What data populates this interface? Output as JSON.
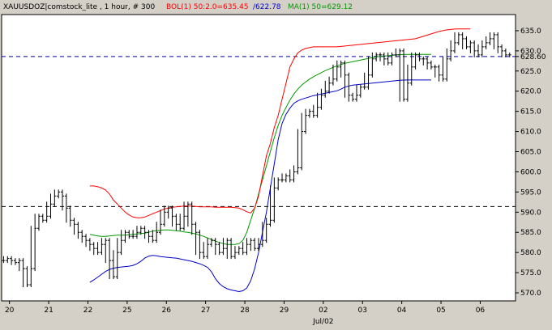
{
  "chart_data": {
    "type": "line",
    "header": {
      "symbol_text": "XAUUSDOZ|comstock_lite , 1 hour, # 300",
      "bol_text": "BOL(1) 50:2.0=635.45",
      "bol_lower_text": "/622.78",
      "ma_text": "MA(1) 50=629.12"
    },
    "colors": {
      "background": "#d4d0c8",
      "plot": "#ffffff",
      "price": "#000000",
      "upper_band": "#ff0000",
      "lower_band": "#0000cc",
      "moving_average": "#009900",
      "ref_line_top": "#0000aa",
      "ref_line_bottom": "#000000"
    },
    "ylim": [
      568,
      639
    ],
    "y_ticks": [
      {
        "value": 635,
        "label": "635.0"
      },
      {
        "value": 630,
        "label": "630.0"
      },
      {
        "value": 628.6,
        "label": "628.60"
      },
      {
        "value": 625,
        "label": "625.0"
      },
      {
        "value": 620,
        "label": "620.0"
      },
      {
        "value": 615,
        "label": "615.0"
      },
      {
        "value": 610,
        "label": "610.0"
      },
      {
        "value": 605,
        "label": "605.0"
      },
      {
        "value": 600,
        "label": "600.0"
      },
      {
        "value": 595,
        "label": "595.0"
      },
      {
        "value": 590,
        "label": "590.0"
      },
      {
        "value": 585,
        "label": "585.0"
      },
      {
        "value": 580,
        "label": "580.0"
      },
      {
        "value": 575,
        "label": "575.0"
      },
      {
        "value": 570,
        "label": "570.0"
      }
    ],
    "x_ticks": [
      {
        "value": 2,
        "label": "20"
      },
      {
        "value": 12,
        "label": "21"
      },
      {
        "value": 22,
        "label": "22"
      },
      {
        "value": 32,
        "label": "25"
      },
      {
        "value": 42,
        "label": "26"
      },
      {
        "value": 52,
        "label": "27"
      },
      {
        "value": 62,
        "label": "28"
      },
      {
        "value": 72,
        "label": "29"
      },
      {
        "value": 82,
        "label": "02"
      },
      {
        "value": 92,
        "label": "03"
      },
      {
        "value": 102,
        "label": "04"
      },
      {
        "value": 112,
        "label": "05"
      },
      {
        "value": 122,
        "label": "06"
      }
    ],
    "x_sublabel": {
      "value": 82,
      "label": "Jul/02"
    },
    "xlim": [
      0,
      131
    ],
    "ref_lines": [
      {
        "y": 628.6,
        "color": "#0000aa"
      },
      {
        "y": 591.4,
        "color": "#000000"
      }
    ],
    "price_close": [
      578,
      578.5,
      578,
      577.5,
      578,
      576,
      572,
      576,
      586,
      589,
      588,
      589,
      592,
      594,
      595,
      594,
      591,
      588,
      587,
      585,
      584,
      583,
      582,
      581,
      580,
      582,
      583,
      578,
      574,
      580,
      583,
      585,
      584,
      584,
      585,
      586,
      585,
      584,
      583,
      585,
      587,
      590,
      591,
      589,
      587,
      586,
      589,
      592,
      587,
      585,
      580,
      579,
      582,
      583,
      582,
      580,
      581,
      583,
      579,
      580,
      581,
      580,
      582,
      583,
      581,
      582,
      583,
      587,
      588,
      596,
      598,
      598,
      599,
      598,
      600,
      601,
      610,
      614,
      615,
      614,
      616,
      619,
      620,
      622,
      623,
      626,
      627,
      624,
      619,
      618,
      619,
      621,
      621,
      624,
      628,
      629,
      629,
      628,
      627,
      629,
      629,
      630,
      618,
      622,
      626,
      629,
      628,
      628,
      627,
      626,
      626,
      624,
      623,
      628,
      630,
      632,
      634,
      633,
      631,
      632,
      630,
      629,
      631,
      632,
      633,
      634,
      631,
      630,
      629,
      629
    ],
    "upper_band": [
      null,
      null,
      null,
      null,
      null,
      null,
      null,
      null,
      null,
      null,
      null,
      null,
      null,
      null,
      null,
      null,
      null,
      null,
      null,
      null,
      null,
      null,
      596.5,
      596.5,
      596.3,
      596,
      595.5,
      594.5,
      593,
      592,
      591,
      590,
      589.3,
      588.8,
      588.6,
      588.6,
      588.8,
      589.2,
      589.6,
      590,
      590.4,
      590.8,
      591,
      591.2,
      591.3,
      591.4,
      591.5,
      591.5,
      591.5,
      591.4,
      591.3,
      591.3,
      591.3,
      591.3,
      591.2,
      591.2,
      591.2,
      591.2,
      591.2,
      591.1,
      591,
      590.6,
      590.1,
      589.8,
      591,
      594,
      599,
      604,
      607,
      611,
      614,
      618,
      622,
      626,
      628,
      629.5,
      630.2,
      630.6,
      630.8,
      631,
      631,
      631,
      631,
      631,
      631,
      631,
      631.1,
      631.2,
      631.3,
      631.4,
      631.5,
      631.6,
      631.7,
      631.8,
      631.9,
      632,
      632.1,
      632.2,
      632.3,
      632.4,
      632.5,
      632.6,
      632.7,
      632.8,
      632.9,
      633,
      633.3,
      633.6,
      633.9,
      634.2,
      634.5,
      634.8,
      635,
      635.2,
      635.3,
      635.4,
      635.45,
      635.45,
      635.45,
      635.45
    ],
    "moving_average": [
      null,
      null,
      null,
      null,
      null,
      null,
      null,
      null,
      null,
      null,
      null,
      null,
      null,
      null,
      null,
      null,
      null,
      null,
      null,
      null,
      null,
      null,
      584.5,
      584.3,
      584.1,
      584,
      584,
      584.1,
      584.2,
      584.3,
      584.3,
      584.3,
      584.4,
      584.5,
      584.6,
      584.7,
      584.8,
      585,
      585.3,
      585.4,
      585.5,
      585.6,
      585.6,
      585.5,
      585.4,
      585.3,
      585.1,
      585,
      584.8,
      584.6,
      584.3,
      584,
      583.6,
      583.2,
      582.8,
      582.5,
      582.2,
      582,
      582,
      582,
      582.2,
      583,
      585,
      588,
      591,
      594.5,
      598,
      601.5,
      605,
      608.5,
      611.5,
      614,
      616,
      617.8,
      619.3,
      620.5,
      621.5,
      622.3,
      623,
      623.6,
      624.1,
      624.6,
      625.1,
      625.5,
      625.9,
      626.3,
      626.6,
      626.9,
      627.1,
      627.3,
      627.5,
      627.7,
      627.9,
      628.1,
      628.3,
      628.5,
      628.6,
      628.7,
      628.8,
      628.9,
      629,
      629.05,
      629.1,
      629.12,
      629.12,
      629.12,
      629.12,
      629.12,
      629.12,
      629.12
    ],
    "lower_band": [
      null,
      null,
      null,
      null,
      null,
      null,
      null,
      null,
      null,
      null,
      null,
      null,
      null,
      null,
      null,
      null,
      null,
      null,
      null,
      null,
      null,
      null,
      572.6,
      573.2,
      573.9,
      574.6,
      575.3,
      575.8,
      576.1,
      576.3,
      576.4,
      576.5,
      576.6,
      576.8,
      577.2,
      577.8,
      578.6,
      579.1,
      579.3,
      579.2,
      579,
      578.9,
      578.8,
      578.7,
      578.6,
      578.4,
      578.2,
      578,
      577.8,
      577.5,
      577.2,
      576.8,
      576.3,
      575.2,
      573.5,
      572.3,
      571.5,
      571,
      570.7,
      570.5,
      570.3,
      570.5,
      571.2,
      573,
      576,
      580,
      585,
      590,
      596,
      602,
      608,
      612,
      614.3,
      615.8,
      617,
      617.6,
      618,
      618.3,
      618.6,
      618.9,
      619.1,
      619.3,
      619.5,
      619.7,
      619.9,
      620.1,
      620.5,
      621,
      621.3,
      621.5,
      621.6,
      621.7,
      621.8,
      621.9,
      622,
      622.1,
      622.2,
      622.3,
      622.4,
      622.5,
      622.6,
      622.7,
      622.75,
      622.78,
      622.78,
      622.78,
      622.78,
      622.78,
      622.78,
      622.78
    ]
  }
}
